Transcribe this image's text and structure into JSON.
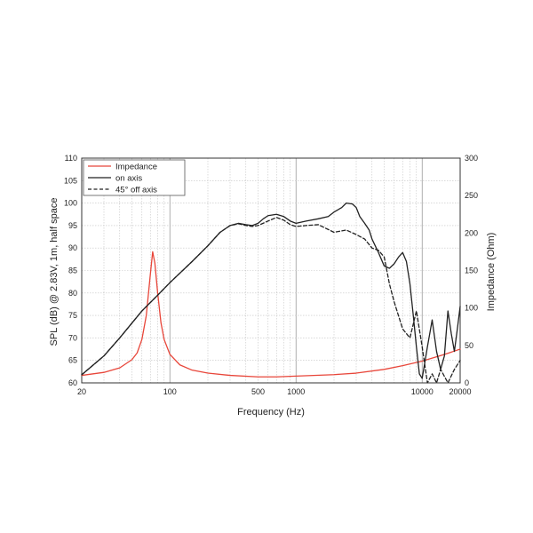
{
  "chart_data": {
    "type": "line",
    "xlabel": "Frequency (Hz)",
    "ylabel_left": "SPL (dB) @ 2.83V, 1m, half space",
    "ylabel_right": "Impedance (Ohm)",
    "x_scale": "log",
    "xlim": [
      20,
      20000
    ],
    "ylim_left": [
      60,
      110
    ],
    "ylim_right": [
      0,
      300
    ],
    "x_ticks": [
      20,
      100,
      500,
      1000,
      10000,
      20000
    ],
    "x_tick_labels": [
      "20",
      "100",
      "500",
      "1000",
      "10000",
      "20000"
    ],
    "y_left_ticks": [
      60,
      65,
      70,
      75,
      80,
      85,
      90,
      95,
      100,
      105,
      110
    ],
    "y_left_tick_labels": [
      "60",
      "65",
      "70",
      "75",
      "80",
      "85",
      "90",
      "95",
      "100",
      "105",
      "110"
    ],
    "y_right_ticks": [
      0,
      50,
      100,
      150,
      200,
      250,
      300
    ],
    "y_right_tick_labels": [
      "0",
      "50",
      "100",
      "150",
      "200",
      "250",
      "300"
    ],
    "grid": true,
    "legend_position": "top-left",
    "series": [
      {
        "name": "Impedance",
        "axis": "right",
        "color": "#e8463a",
        "style": "solid",
        "points": [
          [
            20,
            10
          ],
          [
            30,
            14
          ],
          [
            40,
            20
          ],
          [
            50,
            31
          ],
          [
            55,
            40
          ],
          [
            60,
            58
          ],
          [
            65,
            90
          ],
          [
            70,
            145
          ],
          [
            73,
            175
          ],
          [
            76,
            160
          ],
          [
            80,
            120
          ],
          [
            85,
            80
          ],
          [
            90,
            58
          ],
          [
            100,
            38
          ],
          [
            120,
            24
          ],
          [
            150,
            17
          ],
          [
            200,
            13
          ],
          [
            300,
            10
          ],
          [
            500,
            8
          ],
          [
            700,
            8
          ],
          [
            1000,
            9
          ],
          [
            2000,
            11
          ],
          [
            3000,
            13
          ],
          [
            5000,
            18
          ],
          [
            7000,
            23
          ],
          [
            10000,
            29
          ],
          [
            15000,
            38
          ],
          [
            20000,
            45
          ]
        ]
      },
      {
        "name": "on axis",
        "axis": "left",
        "color": "#222222",
        "style": "solid",
        "points": [
          [
            20,
            61.8
          ],
          [
            30,
            66
          ],
          [
            40,
            70
          ],
          [
            50,
            73.3
          ],
          [
            60,
            76
          ],
          [
            80,
            79.5
          ],
          [
            100,
            82.3
          ],
          [
            150,
            87
          ],
          [
            200,
            90.5
          ],
          [
            250,
            93.5
          ],
          [
            300,
            95
          ],
          [
            350,
            95.5
          ],
          [
            400,
            95.2
          ],
          [
            450,
            95
          ],
          [
            500,
            95.5
          ],
          [
            550,
            96.5
          ],
          [
            600,
            97.2
          ],
          [
            700,
            97.5
          ],
          [
            800,
            97
          ],
          [
            900,
            96
          ],
          [
            1000,
            95.5
          ],
          [
            1200,
            96
          ],
          [
            1500,
            96.5
          ],
          [
            1800,
            97
          ],
          [
            2000,
            98
          ],
          [
            2300,
            99
          ],
          [
            2500,
            100
          ],
          [
            2800,
            99.8
          ],
          [
            3000,
            99
          ],
          [
            3200,
            97
          ],
          [
            3500,
            95.5
          ],
          [
            3800,
            94
          ],
          [
            4000,
            92
          ],
          [
            4500,
            89
          ],
          [
            5000,
            86
          ],
          [
            5500,
            85.5
          ],
          [
            6000,
            86.5
          ],
          [
            6500,
            88
          ],
          [
            7000,
            89
          ],
          [
            7500,
            87
          ],
          [
            8000,
            82
          ],
          [
            8500,
            75
          ],
          [
            9000,
            68
          ],
          [
            9500,
            62
          ],
          [
            10000,
            61
          ],
          [
            11000,
            68
          ],
          [
            12000,
            74
          ],
          [
            13000,
            67
          ],
          [
            14000,
            63
          ],
          [
            15000,
            66
          ],
          [
            16000,
            76
          ],
          [
            17000,
            71
          ],
          [
            18000,
            67
          ],
          [
            19000,
            72
          ],
          [
            20000,
            77
          ]
        ]
      },
      {
        "name": "45° off axis",
        "axis": "left",
        "color": "#222222",
        "style": "dashed",
        "points": [
          [
            20,
            61.8
          ],
          [
            30,
            66
          ],
          [
            40,
            70
          ],
          [
            50,
            73.3
          ],
          [
            60,
            76
          ],
          [
            80,
            79.5
          ],
          [
            100,
            82.3
          ],
          [
            150,
            87
          ],
          [
            200,
            90.5
          ],
          [
            250,
            93.5
          ],
          [
            300,
            95
          ],
          [
            350,
            95.4
          ],
          [
            400,
            95
          ],
          [
            450,
            94.8
          ],
          [
            500,
            95
          ],
          [
            600,
            96
          ],
          [
            700,
            96.8
          ],
          [
            800,
            96.2
          ],
          [
            900,
            95.2
          ],
          [
            1000,
            94.8
          ],
          [
            1200,
            95
          ],
          [
            1500,
            95.2
          ],
          [
            2000,
            93.5
          ],
          [
            2500,
            94
          ],
          [
            3000,
            93
          ],
          [
            3500,
            92
          ],
          [
            4000,
            90
          ],
          [
            4500,
            89.5
          ],
          [
            5000,
            88
          ],
          [
            5500,
            82
          ],
          [
            6000,
            78
          ],
          [
            7000,
            72
          ],
          [
            8000,
            70
          ],
          [
            9000,
            76
          ],
          [
            10000,
            68
          ],
          [
            11000,
            60
          ],
          [
            12000,
            62
          ],
          [
            13000,
            60
          ],
          [
            14000,
            63
          ],
          [
            16000,
            60
          ],
          [
            18000,
            63
          ],
          [
            20000,
            65
          ]
        ]
      }
    ]
  }
}
